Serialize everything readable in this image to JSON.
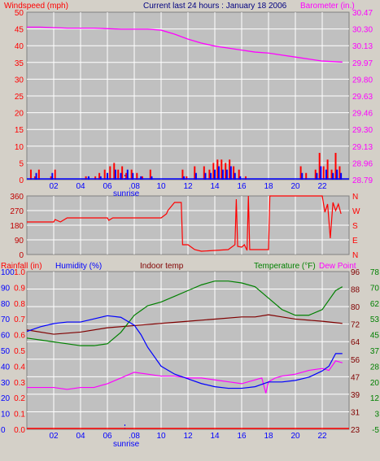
{
  "header": {
    "windspeed_label": "Windspeed (mph)",
    "title": "Current last 24 hours : January 18 2006",
    "barometer_label": "Barometer (in.)"
  },
  "colors": {
    "panel_bg": "#c0c0c0",
    "frame_bg": "#d4d0c8",
    "grid": "#ffffff",
    "red": "#ff0000",
    "blue": "#0000ff",
    "magenta": "#ff00ff",
    "green": "#008000",
    "maroon": "#800000",
    "dark_red": "#c00000"
  },
  "x_ticks": [
    "02",
    "04",
    "06",
    "08",
    "10",
    "12",
    "14",
    "16",
    "18",
    "20",
    "22"
  ],
  "sunrise_label": "sunrise",
  "chart_data": [
    {
      "type": "bar",
      "name": "wind-barometer",
      "x_range": [
        0,
        24
      ],
      "left_axis": {
        "label": "Windspeed (mph)",
        "ticks": [
          0,
          5,
          10,
          15,
          20,
          25,
          30,
          35,
          40,
          45,
          50
        ],
        "range": [
          0,
          50
        ]
      },
      "right_axis": {
        "label": "Barometer (in.)",
        "ticks": [
          "28.79",
          "28.96",
          "29.13",
          "29.30",
          "29.46",
          "29.63",
          "29.80",
          "29.97",
          "30.13",
          "30.30",
          "30.47"
        ],
        "range": [
          28.79,
          30.47
        ]
      },
      "barometer": {
        "x": [
          0,
          1,
          3,
          5,
          7,
          9,
          10,
          11,
          12,
          13,
          14,
          15,
          16,
          17,
          18,
          19,
          20,
          21,
          22,
          23.5
        ],
        "y": [
          30.32,
          30.32,
          30.31,
          30.31,
          30.3,
          30.3,
          30.29,
          30.25,
          30.2,
          30.16,
          30.13,
          30.11,
          30.09,
          30.07,
          30.06,
          30.04,
          30.02,
          30.0,
          29.98,
          29.97
        ]
      },
      "gust_bars": {
        "x": [
          0.3,
          0.6,
          0.9,
          1.8,
          2.1,
          4.4,
          5.1,
          5.4,
          5.8,
          6.2,
          6.5,
          6.8,
          7.1,
          7.4,
          7.8,
          8.2,
          8.6,
          9.2,
          11.6,
          11.9,
          12.5,
          13.2,
          13.6,
          13.9,
          14.2,
          14.5,
          14.8,
          15.1,
          15.4,
          15.8,
          16.3,
          20.4,
          20.8,
          21.5,
          21.8,
          22.1,
          22.4,
          22.7,
          23.0,
          23.3
        ],
        "y": [
          3,
          1,
          3,
          1,
          3,
          1,
          1,
          2,
          3,
          4,
          5,
          3,
          4,
          2,
          3,
          2,
          1,
          3,
          3,
          1,
          4,
          4,
          3,
          5,
          6,
          6,
          5,
          6,
          4,
          3,
          1,
          4,
          2,
          3,
          8,
          4,
          6,
          3,
          8,
          4
        ]
      },
      "avg_bars": {
        "x": [
          0.7,
          1.9,
          4.6,
          5.5,
          6.0,
          6.6,
          7.0,
          7.5,
          7.9,
          8.5,
          9.3,
          11.7,
          12.6,
          13.3,
          13.7,
          14.0,
          14.3,
          14.6,
          14.9,
          15.2,
          15.5,
          15.9,
          20.5,
          21.6,
          21.9,
          22.3,
          22.8,
          23.1,
          23.4
        ],
        "y": [
          2,
          2,
          1,
          1,
          2,
          3,
          2,
          3,
          2,
          1,
          1,
          1,
          2,
          2,
          2,
          3,
          4,
          3,
          3,
          4,
          2,
          1,
          2,
          2,
          4,
          3,
          2,
          3,
          2
        ]
      }
    },
    {
      "type": "line",
      "name": "wind-direction",
      "x_range": [
        0,
        24
      ],
      "left_axis": {
        "ticks": [
          0,
          90,
          180,
          270,
          360
        ],
        "range": [
          0,
          360
        ]
      },
      "right_axis": {
        "ticks": [
          "N",
          "E",
          "S",
          "W",
          "N"
        ]
      },
      "direction": {
        "x": [
          0,
          2,
          2.1,
          2.5,
          3,
          6,
          6.1,
          6.4,
          6.5,
          10,
          10.4,
          10.5,
          10.8,
          11,
          11.5,
          11.6,
          12,
          12.5,
          13,
          14,
          15,
          15.5,
          15.6,
          15.7,
          16,
          16.2,
          16.4,
          16.5,
          16.6,
          16.7,
          18,
          18.1,
          18.2,
          20,
          22,
          22.2,
          22.4,
          22.6,
          22.8,
          23,
          23.2,
          23.4
        ],
        "y": [
          200,
          200,
          215,
          200,
          225,
          225,
          210,
          225,
          225,
          225,
          250,
          270,
          300,
          320,
          320,
          60,
          60,
          30,
          20,
          25,
          30,
          60,
          340,
          50,
          45,
          60,
          25,
          360,
          30,
          30,
          30,
          360,
          360,
          360,
          360,
          260,
          310,
          100,
          320,
          270,
          310,
          250
        ]
      }
    },
    {
      "type": "line",
      "name": "rain-humidity-temperature",
      "x_range": [
        0,
        24
      ],
      "labels": [
        "Rainfall (in)",
        "Humidity (%)",
        "Indoor temp",
        "Temperature (°F)",
        "Dew Point"
      ],
      "axes": {
        "humidity": [
          "0",
          "10",
          "20",
          "30",
          "40",
          "50",
          "60",
          "70",
          "80",
          "90",
          "100"
        ],
        "rainfall": [
          "0.0",
          "0.1",
          "0.2",
          "0.3",
          "0.4",
          "0.5",
          "0.6",
          "0.7",
          "0.8",
          "0.9",
          "1.0"
        ],
        "indoor_temp": [
          "23",
          "31",
          "39",
          "47",
          "56",
          "64",
          "72",
          "80",
          "88",
          "96"
        ],
        "temperature": [
          "-5",
          "3",
          "12",
          "20",
          "28",
          "37",
          "45",
          "53",
          "62",
          "70",
          "78"
        ]
      },
      "humidity": {
        "x": [
          0,
          1,
          2,
          3,
          4,
          5,
          6,
          7,
          8,
          8.5,
          9,
          10,
          11,
          12,
          13,
          14,
          15,
          16,
          17,
          18,
          19,
          20,
          21,
          22,
          22.5,
          23,
          23.5
        ],
        "y": [
          62,
          65,
          67,
          68,
          68,
          70,
          72,
          71,
          66,
          60,
          52,
          40,
          35,
          32,
          29,
          27,
          26,
          26,
          27,
          30,
          30,
          31,
          33,
          37,
          40,
          48,
          48
        ]
      },
      "temperature": {
        "x": [
          0,
          1,
          2,
          3,
          4,
          5,
          6,
          7,
          8,
          9,
          10,
          11,
          12,
          13,
          14,
          15,
          16,
          17,
          18,
          19,
          20,
          21,
          22,
          22.5,
          23,
          23.5
        ],
        "y": [
          43,
          42,
          41,
          40,
          39,
          39,
          40,
          46,
          55,
          60,
          62,
          65,
          68,
          71,
          73,
          73,
          72,
          70,
          64,
          58,
          55,
          55,
          58,
          63,
          68,
          70
        ]
      },
      "indoor_temp": {
        "x": [
          0,
          2,
          4,
          6,
          8,
          10,
          12,
          14,
          16,
          17,
          18,
          19,
          20,
          22,
          23.5
        ],
        "y": [
          69,
          67,
          68,
          70,
          71,
          72,
          73,
          74,
          75,
          75,
          76,
          75,
          74,
          73,
          72
        ]
      },
      "dew_point": {
        "x": [
          0,
          1,
          2,
          3,
          4,
          5,
          6,
          7,
          8,
          9,
          10,
          11,
          12,
          13,
          14,
          15,
          16,
          17,
          17.5,
          17.8,
          18,
          18.5,
          19,
          20,
          21,
          22,
          22.5,
          23,
          23.5
        ],
        "y": [
          17,
          17,
          17,
          16,
          17,
          17,
          19,
          22,
          25,
          24,
          23,
          23,
          22,
          22,
          21,
          20,
          19,
          21,
          22,
          14,
          20,
          22,
          23,
          24,
          26,
          27,
          26,
          31,
          30
        ]
      },
      "rainfall": {
        "x": [
          0,
          24
        ],
        "y": [
          0.0,
          0.0
        ]
      }
    }
  ]
}
